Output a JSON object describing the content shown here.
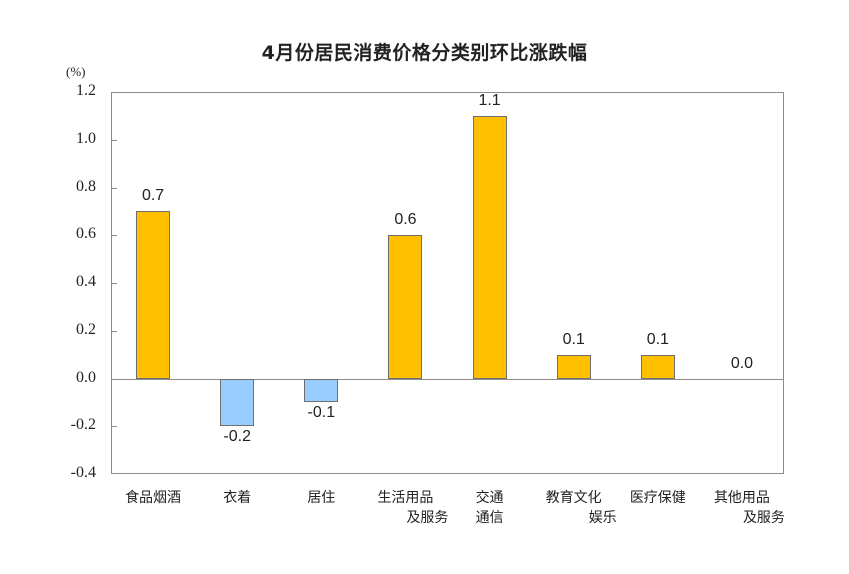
{
  "chart_data": {
    "type": "bar",
    "title": "4月份居民消费价格分类别环比涨跌幅",
    "unit": "(%)",
    "xlabel": "",
    "ylabel": "(%)",
    "ylim": [
      -0.4,
      1.2
    ],
    "yticks": [
      "1.2",
      "1.0",
      "0.8",
      "0.6",
      "0.4",
      "0.2",
      "0.0",
      "-0.2",
      "-0.4"
    ],
    "grid": false,
    "legend": null,
    "categories": [
      "食品烟酒",
      "衣着",
      "居住",
      "生活用品及服务",
      "交通通信",
      "教育文化娱乐",
      "医疗保健",
      "其他用品及服务"
    ],
    "category_lines": [
      [
        "食品烟酒"
      ],
      [
        "衣着"
      ],
      [
        "居住"
      ],
      [
        "生活用品",
        "及服务"
      ],
      [
        "交通",
        "通信"
      ],
      [
        "教育文化",
        "娱乐"
      ],
      [
        "医疗保健"
      ],
      [
        "其他用品",
        "及服务"
      ]
    ],
    "values": [
      0.7,
      -0.2,
      -0.1,
      0.6,
      1.1,
      0.1,
      0.1,
      0.0
    ],
    "value_labels": [
      "0.7",
      "-0.2",
      "-0.1",
      "0.6",
      "1.1",
      "0.1",
      "0.1",
      "0.0"
    ],
    "colors": {
      "positive": "#FFC000",
      "negative": "#99CCFF",
      "border": "#6E6E6E",
      "axis": "#8C8C8C"
    }
  }
}
